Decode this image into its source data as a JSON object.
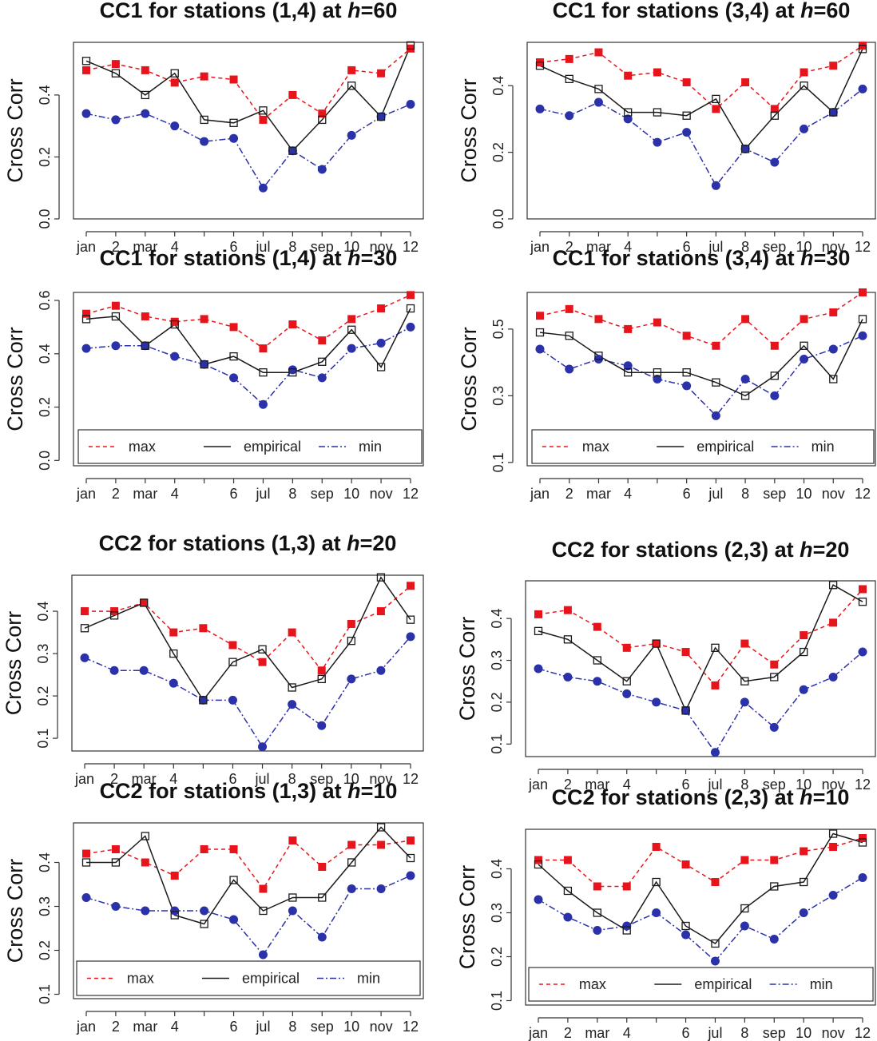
{
  "colors": {
    "max": "#e8141b",
    "empirical": "#1a1a1a",
    "min": "#2b31a8",
    "axis": "#333333"
  },
  "x_categories": [
    "1",
    "2",
    "3",
    "4",
    "5",
    "6",
    "7",
    "8",
    "9",
    "10",
    "11",
    "12"
  ],
  "x_tick_labels": [
    "jan",
    "2",
    "mar",
    "4",
    "",
    "6",
    "jul",
    "8",
    "sep",
    "10",
    "nov",
    "12"
  ],
  "legend": {
    "max": "max",
    "empirical": "empirical",
    "min": "min"
  },
  "chart_data": [
    {
      "type": "line",
      "title_pre": "CC1 for stations (1,4) at ",
      "title_h": "h",
      "title_post": "=60",
      "ylabel": "Cross Corr",
      "ylim": [
        0,
        0.57
      ],
      "yticks": [
        "0.0",
        "0.2",
        "0.4"
      ],
      "ytick_values": [
        0,
        0.2,
        0.4
      ],
      "legend_visible": false,
      "series": [
        {
          "name": "max",
          "values": [
            0.48,
            0.5,
            0.48,
            0.44,
            0.46,
            0.45,
            0.32,
            0.4,
            0.34,
            0.48,
            0.47,
            0.55
          ]
        },
        {
          "name": "empirical",
          "values": [
            0.51,
            0.47,
            0.4,
            0.47,
            0.32,
            0.31,
            0.35,
            0.22,
            0.32,
            0.43,
            0.33,
            0.56
          ]
        },
        {
          "name": "min",
          "values": [
            0.34,
            0.32,
            0.34,
            0.3,
            0.25,
            0.26,
            0.1,
            0.22,
            0.16,
            0.27,
            0.33,
            0.37
          ]
        }
      ]
    },
    {
      "type": "line",
      "title_pre": "CC1 for stations (3,4) at ",
      "title_h": "h",
      "title_post": "=60",
      "ylabel": "Cross Corr",
      "ylim": [
        0,
        0.53
      ],
      "yticks": [
        "0.0",
        "0.2",
        "0.4"
      ],
      "ytick_values": [
        0,
        0.2,
        0.4
      ],
      "legend_visible": false,
      "series": [
        {
          "name": "max",
          "values": [
            0.47,
            0.48,
            0.5,
            0.43,
            0.44,
            0.41,
            0.33,
            0.41,
            0.33,
            0.44,
            0.46,
            0.52
          ]
        },
        {
          "name": "empirical",
          "values": [
            0.46,
            0.42,
            0.39,
            0.32,
            0.32,
            0.31,
            0.36,
            0.21,
            0.31,
            0.4,
            0.32,
            0.51
          ]
        },
        {
          "name": "min",
          "values": [
            0.33,
            0.31,
            0.35,
            0.3,
            0.23,
            0.26,
            0.1,
            0.21,
            0.17,
            0.27,
            0.32,
            0.39
          ]
        }
      ]
    },
    {
      "type": "line",
      "title_pre": "CC1 for stations (1,4) at ",
      "title_h": "h",
      "title_post": "=30",
      "ylabel": "Cross Corr",
      "ylim": [
        -0.02,
        0.63
      ],
      "yticks": [
        "0.0",
        "0.2",
        "0.4",
        "0.6"
      ],
      "ytick_values": [
        0,
        0.2,
        0.4,
        0.6
      ],
      "legend_visible": true,
      "series": [
        {
          "name": "max",
          "values": [
            0.55,
            0.58,
            0.54,
            0.52,
            0.53,
            0.5,
            0.42,
            0.51,
            0.45,
            0.53,
            0.57,
            0.62
          ]
        },
        {
          "name": "empirical",
          "values": [
            0.53,
            0.54,
            0.43,
            0.51,
            0.36,
            0.39,
            0.33,
            0.33,
            0.37,
            0.49,
            0.35,
            0.57
          ]
        },
        {
          "name": "min",
          "values": [
            0.42,
            0.43,
            0.43,
            0.39,
            0.36,
            0.31,
            0.21,
            0.34,
            0.31,
            0.42,
            0.44,
            0.5
          ]
        }
      ]
    },
    {
      "type": "line",
      "title_pre": "CC1 for stations (3,4) at ",
      "title_h": "h",
      "title_post": "=30",
      "ylabel": "Cross Corr",
      "ylim": [
        0.09,
        0.61
      ],
      "yticks": [
        "0.1",
        "0.3",
        "0.5"
      ],
      "ytick_values": [
        0.1,
        0.3,
        0.5
      ],
      "legend_visible": true,
      "series": [
        {
          "name": "max",
          "values": [
            0.54,
            0.56,
            0.53,
            0.5,
            0.52,
            0.48,
            0.45,
            0.53,
            0.45,
            0.53,
            0.55,
            0.61
          ]
        },
        {
          "name": "empirical",
          "values": [
            0.49,
            0.48,
            0.42,
            0.37,
            0.37,
            0.37,
            0.34,
            0.3,
            0.36,
            0.45,
            0.35,
            0.53
          ]
        },
        {
          "name": "min",
          "values": [
            0.44,
            0.38,
            0.41,
            0.39,
            0.35,
            0.33,
            0.24,
            0.35,
            0.3,
            0.41,
            0.44,
            0.48
          ]
        }
      ]
    },
    {
      "type": "line",
      "title_pre": "CC2 for stations (1,3) at ",
      "title_h": "h",
      "title_post": "=20",
      "ylabel": "Cross Corr",
      "ylim": [
        0.07,
        0.485
      ],
      "yticks": [
        "0.1",
        "0.2",
        "0.3",
        "0.4"
      ],
      "ytick_values": [
        0.1,
        0.2,
        0.3,
        0.4
      ],
      "legend_visible": false,
      "series": [
        {
          "name": "max",
          "values": [
            0.4,
            0.4,
            0.42,
            0.35,
            0.36,
            0.32,
            0.28,
            0.35,
            0.26,
            0.37,
            0.4,
            0.46
          ]
        },
        {
          "name": "empirical",
          "values": [
            0.36,
            0.39,
            0.42,
            0.3,
            0.19,
            0.28,
            0.31,
            0.22,
            0.24,
            0.33,
            0.48,
            0.38
          ]
        },
        {
          "name": "min",
          "values": [
            0.29,
            0.26,
            0.26,
            0.23,
            0.19,
            0.19,
            0.08,
            0.18,
            0.13,
            0.24,
            0.26,
            0.34
          ]
        }
      ]
    },
    {
      "type": "line",
      "title_pre": "CC2 for stations (2,3) at ",
      "title_h": "h",
      "title_post": "=20",
      "ylabel": "Cross Corr",
      "ylim": [
        0.07,
        0.49
      ],
      "yticks": [
        "0.1",
        "0.2",
        "0.3",
        "0.4"
      ],
      "ytick_values": [
        0.1,
        0.2,
        0.3,
        0.4
      ],
      "legend_visible": false,
      "series": [
        {
          "name": "max",
          "values": [
            0.41,
            0.42,
            0.38,
            0.33,
            0.34,
            0.32,
            0.24,
            0.34,
            0.29,
            0.36,
            0.39,
            0.47
          ]
        },
        {
          "name": "empirical",
          "values": [
            0.37,
            0.35,
            0.3,
            0.25,
            0.34,
            0.18,
            0.33,
            0.25,
            0.26,
            0.32,
            0.48,
            0.44
          ]
        },
        {
          "name": "min",
          "values": [
            0.28,
            0.26,
            0.25,
            0.22,
            0.2,
            0.18,
            0.08,
            0.2,
            0.14,
            0.23,
            0.26,
            0.32
          ]
        }
      ]
    },
    {
      "type": "line",
      "title_pre": "CC2 for stations (1,3) at ",
      "title_h": "h",
      "title_post": "=10",
      "ylabel": "Cross Corr",
      "ylim": [
        0.09,
        0.49
      ],
      "yticks": [
        "0.1",
        "0.2",
        "0.3",
        "0.4"
      ],
      "ytick_values": [
        0.1,
        0.2,
        0.3,
        0.4
      ],
      "legend_visible": true,
      "series": [
        {
          "name": "max",
          "values": [
            0.42,
            0.43,
            0.4,
            0.37,
            0.43,
            0.43,
            0.34,
            0.45,
            0.39,
            0.44,
            0.44,
            0.45
          ]
        },
        {
          "name": "empirical",
          "values": [
            0.4,
            0.4,
            0.46,
            0.28,
            0.26,
            0.36,
            0.29,
            0.32,
            0.32,
            0.4,
            0.48,
            0.41
          ]
        },
        {
          "name": "min",
          "values": [
            0.32,
            0.3,
            0.29,
            0.29,
            0.29,
            0.27,
            0.19,
            0.29,
            0.23,
            0.34,
            0.34,
            0.37
          ]
        }
      ]
    },
    {
      "type": "line",
      "title_pre": "CC2 for stations (2,3) at ",
      "title_h": "h",
      "title_post": "=10",
      "ylabel": "Cross Corr",
      "ylim": [
        0.09,
        0.49
      ],
      "yticks": [
        "0.1",
        "0.2",
        "0.3",
        "0.4"
      ],
      "ytick_values": [
        0.1,
        0.2,
        0.3,
        0.4
      ],
      "legend_visible": true,
      "series": [
        {
          "name": "max",
          "values": [
            0.42,
            0.42,
            0.36,
            0.36,
            0.45,
            0.41,
            0.37,
            0.42,
            0.42,
            0.44,
            0.45,
            0.47
          ]
        },
        {
          "name": "empirical",
          "values": [
            0.41,
            0.35,
            0.3,
            0.26,
            0.37,
            0.27,
            0.23,
            0.31,
            0.36,
            0.37,
            0.48,
            0.46
          ]
        },
        {
          "name": "min",
          "values": [
            0.33,
            0.29,
            0.26,
            0.27,
            0.3,
            0.25,
            0.19,
            0.27,
            0.24,
            0.3,
            0.34,
            0.38
          ]
        }
      ]
    }
  ]
}
